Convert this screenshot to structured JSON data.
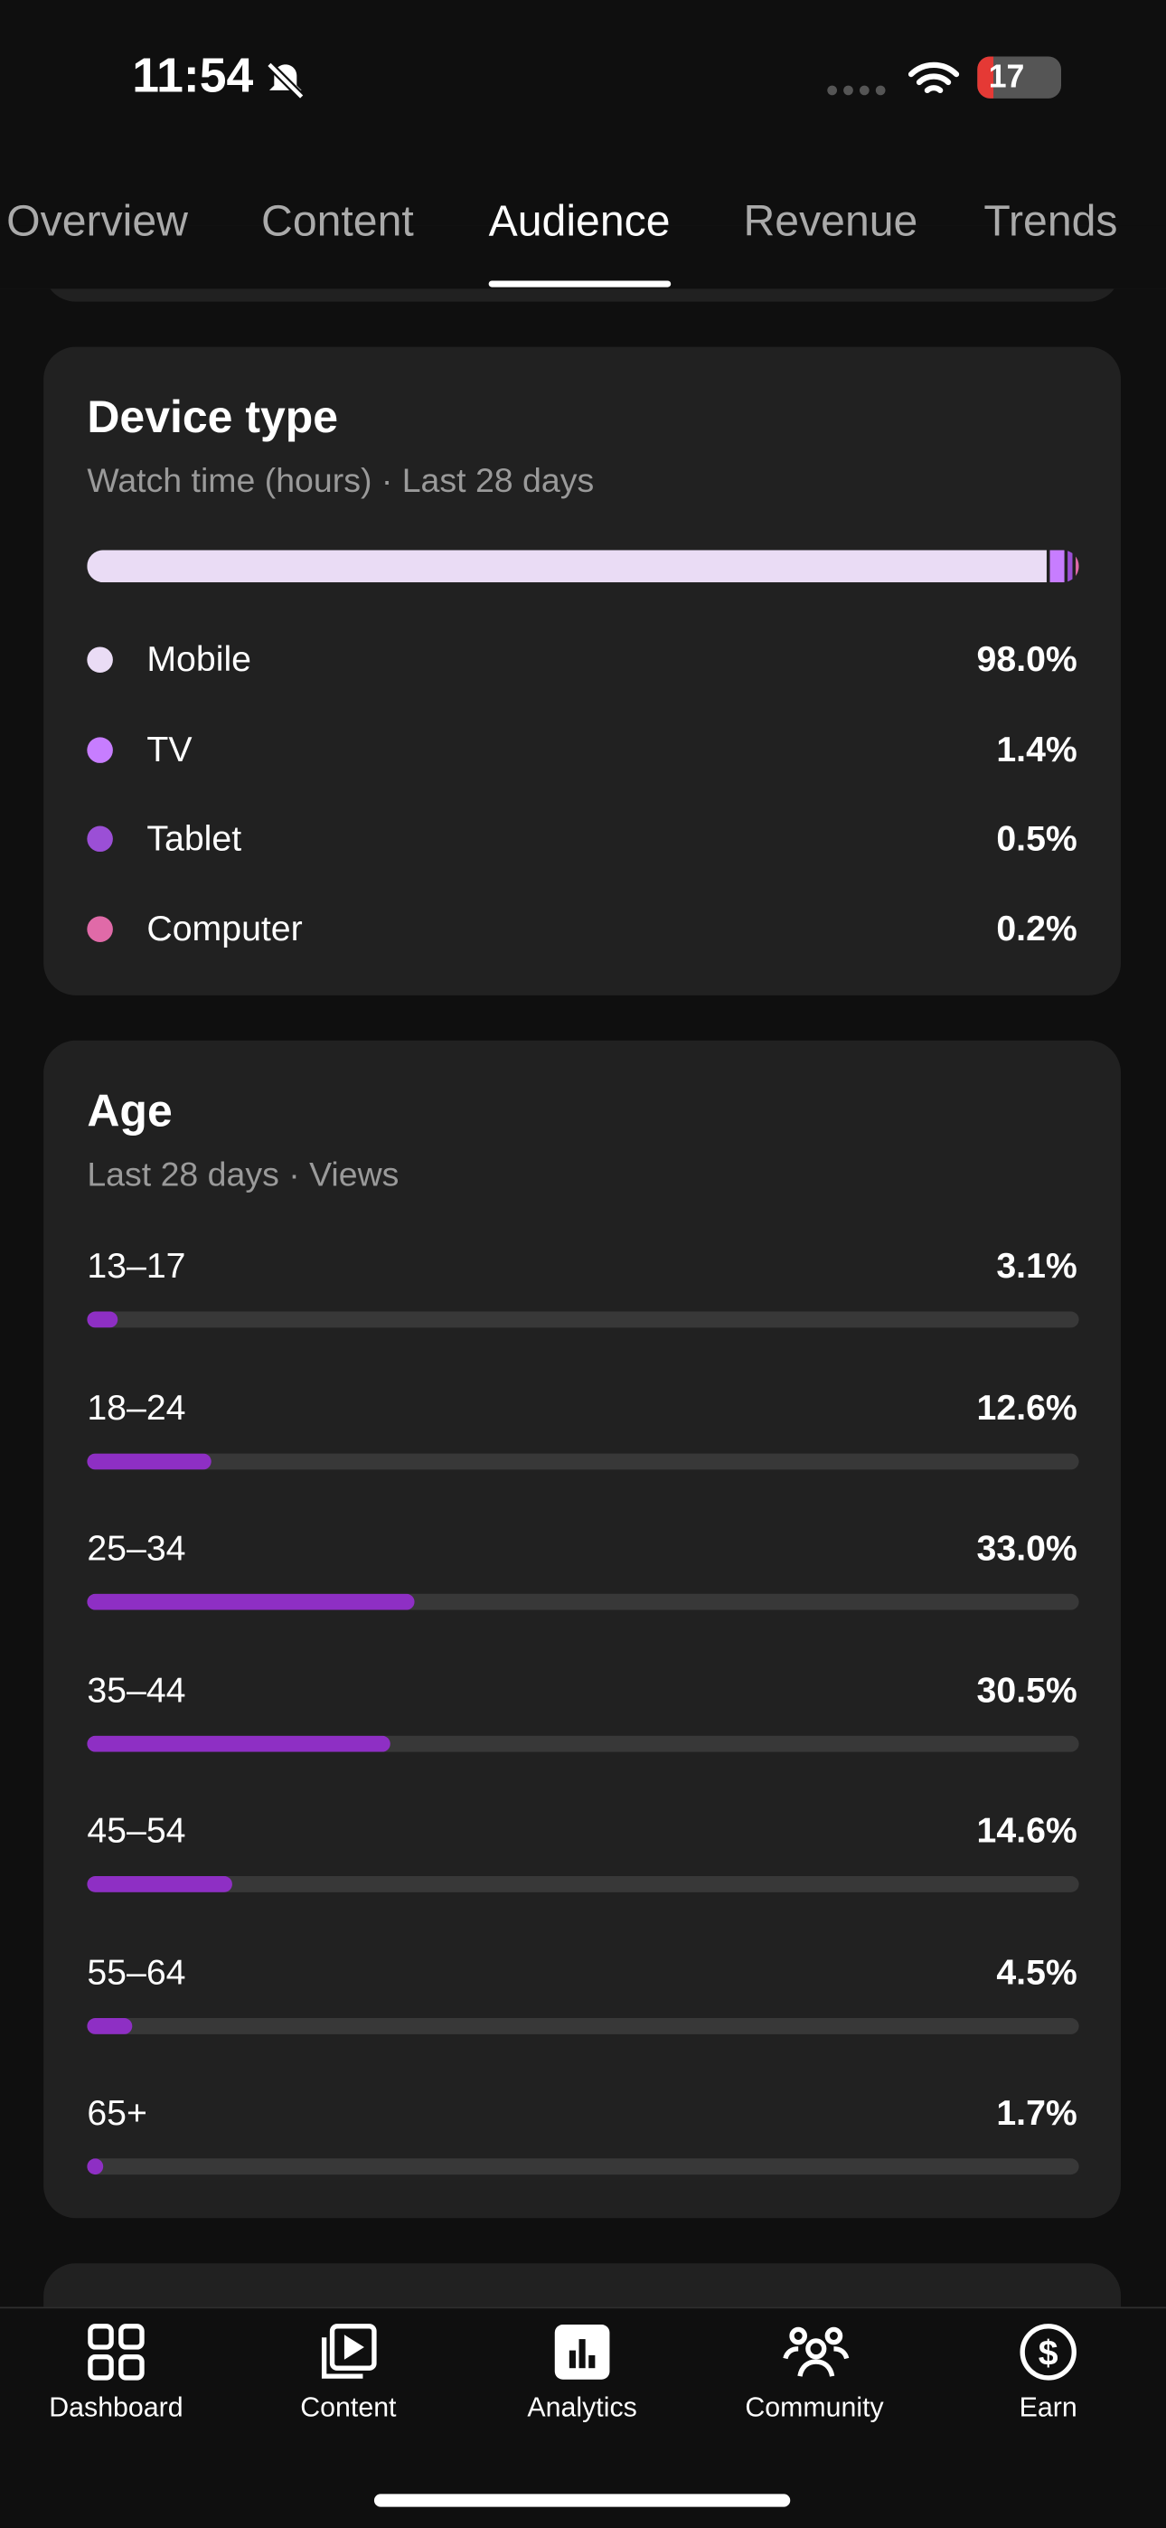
{
  "status_bar": {
    "time": "11:54",
    "battery": "17"
  },
  "tabs": {
    "items": [
      "Overview",
      "Content",
      "Audience",
      "Revenue",
      "Trends"
    ],
    "active": "Audience"
  },
  "device_type": {
    "title": "Device type",
    "subtitle": "Watch time (hours) · Last 28 days",
    "items": [
      {
        "name": "Mobile",
        "value": 98.0,
        "label": "98.0%",
        "color": "#eadcf5"
      },
      {
        "name": "TV",
        "value": 1.4,
        "label": "1.4%",
        "color": "#c77dff"
      },
      {
        "name": "Tablet",
        "value": 0.5,
        "label": "0.5%",
        "color": "#9b4fd6"
      },
      {
        "name": "Computer",
        "value": 0.2,
        "label": "0.2%",
        "color": "#e06aa8"
      }
    ]
  },
  "age": {
    "title": "Age",
    "subtitle": "Last 28 days · Views",
    "color": "#8e2fc4",
    "items": [
      {
        "name": "13–17",
        "value": 3.1,
        "label": "3.1%"
      },
      {
        "name": "18–24",
        "value": 12.6,
        "label": "12.6%"
      },
      {
        "name": "25–34",
        "value": 33.0,
        "label": "33.0%"
      },
      {
        "name": "35–44",
        "value": 30.5,
        "label": "30.5%"
      },
      {
        "name": "45–54",
        "value": 14.6,
        "label": "14.6%"
      },
      {
        "name": "55–64",
        "value": 4.5,
        "label": "4.5%"
      },
      {
        "name": "65+",
        "value": 1.7,
        "label": "1.7%"
      }
    ]
  },
  "bottom_nav": {
    "items": [
      "Dashboard",
      "Content",
      "Analytics",
      "Community",
      "Earn"
    ],
    "active": "Analytics"
  }
}
